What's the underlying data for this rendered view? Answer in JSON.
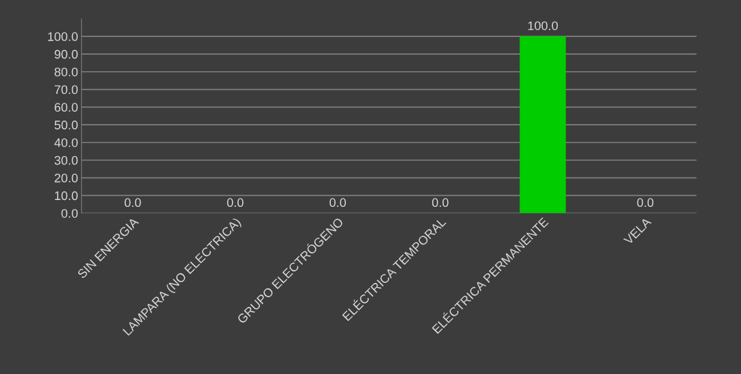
{
  "chart_data": {
    "type": "bar",
    "categories": [
      "SIN ENERGIA",
      "LAMPARA (NO ELECTRICA)",
      "GRUPO ELECTRÓGENO",
      "ELÉCTRICA TEMPORAL",
      "ELÉCTRICA PERMANENTE",
      "VELA"
    ],
    "values": [
      0,
      0,
      0,
      0,
      100,
      0
    ],
    "colors": [
      "#00cc00",
      "#00cc00",
      "#00cc00",
      "#00cc00",
      "#00cc00",
      "#00cc00"
    ],
    "value_labels": [
      "0.0",
      "0.0",
      "0.0",
      "0.0",
      "100.0",
      "0.0"
    ],
    "ylim": [
      0,
      110
    ],
    "yticks": [
      {
        "value": 0,
        "label": "0.0"
      },
      {
        "value": 10,
        "label": "10.0"
      },
      {
        "value": 20,
        "label": "20.0"
      },
      {
        "value": 30,
        "label": "30.0"
      },
      {
        "value": 40,
        "label": "40.0"
      },
      {
        "value": 50,
        "label": "50.0"
      },
      {
        "value": 60,
        "label": "60.0"
      },
      {
        "value": 70,
        "label": "70.0"
      },
      {
        "value": 80,
        "label": "80.0"
      },
      {
        "value": 90,
        "label": "90.0"
      },
      {
        "value": 100,
        "label": "100.0"
      }
    ],
    "grid": "y"
  }
}
